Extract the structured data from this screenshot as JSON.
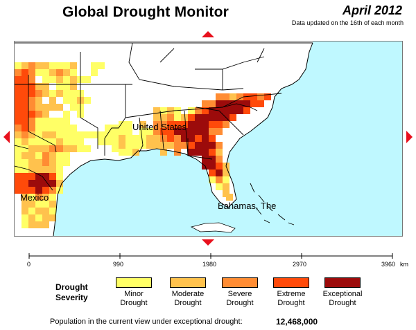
{
  "header": {
    "title": "Global Drought Monitor",
    "date": "April 2012",
    "subtitle": "Data updated on the 16th of each month"
  },
  "map": {
    "labels": {
      "united_states": "United States",
      "mexico": "Mexico",
      "bahamas": "Bahamas, The"
    },
    "colors": {
      "ocean": "#bff8ff",
      "land": "#ffffff",
      "border": "#000000"
    },
    "navigation": [
      "north-arrow",
      "south-arrow",
      "west-arrow",
      "east-arrow"
    ]
  },
  "scale": {
    "ticks": [
      "0",
      "990",
      "1980",
      "2970",
      "3960"
    ],
    "unit": "km"
  },
  "legend": {
    "title_line1": "Drought",
    "title_line2": "Severity",
    "items": [
      {
        "line1": "Minor",
        "line2": "Drought",
        "color": "#ffff66"
      },
      {
        "line1": "Moderate",
        "line2": "Drought",
        "color": "#ffc24d"
      },
      {
        "line1": "Severe",
        "line2": "Drought",
        "color": "#ff8c33"
      },
      {
        "line1": "Extreme",
        "line2": "Drought",
        "color": "#ff4a0a"
      },
      {
        "line1": "Exceptional",
        "line2": "Drought",
        "color": "#9c0b0b"
      }
    ]
  },
  "population": {
    "label": "Population in the current view under exceptional drought:",
    "value": "12,468,000"
  }
}
